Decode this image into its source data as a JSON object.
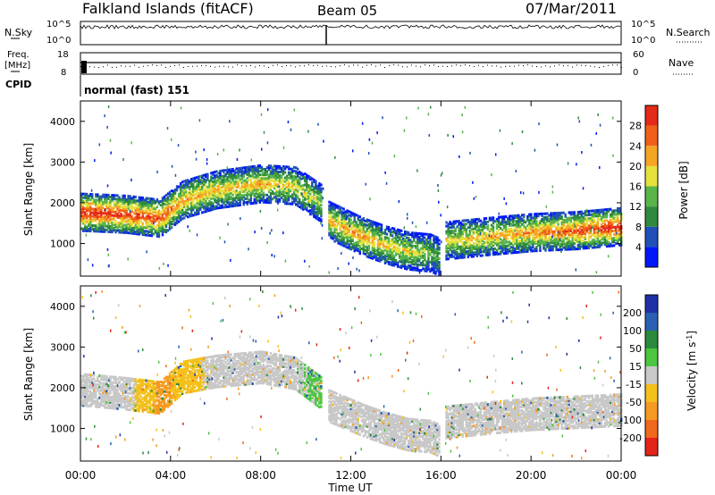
{
  "header": {
    "station": "Falkland Islands (fitACF)",
    "beam": "Beam 05",
    "date": "07/Mar/2011"
  },
  "strips": {
    "nsky_label": "N.Sky",
    "nsky_ticks": [
      "10^5",
      "10^0"
    ],
    "nsearch_label": "N.Search",
    "nsearch_ticks": [
      "10^5",
      "10^0"
    ],
    "freq_label_line1": "Freq.",
    "freq_label_line2": "[MHz]",
    "freq_ticks": [
      "18",
      "8"
    ],
    "nave_label": "Nave",
    "nave_ticks": [
      "60",
      "0"
    ],
    "cpid_label": "CPID",
    "cpid_text": "normal (fast) 151"
  },
  "axes": {
    "ylabel": "Slant Range [km]",
    "y_ticks": [
      "1000",
      "2000",
      "3000",
      "4000"
    ],
    "x_ticks": [
      "00:00",
      "04:00",
      "08:00",
      "12:00",
      "16:00",
      "20:00",
      "00:00"
    ],
    "xlabel": "Time UT"
  },
  "power_scale": {
    "label": "Power [dB]",
    "ticks": [
      "4",
      "8",
      "12",
      "16",
      "20",
      "24",
      "28"
    ],
    "colors": [
      "#0018f8",
      "#2050b8",
      "#2f8a3f",
      "#59b44a",
      "#e6e13c",
      "#f5a524",
      "#f06018",
      "#e42a18"
    ]
  },
  "velocity_scale": {
    "label": "Velocity [m s^-1]",
    "ticks": [
      "200",
      "100",
      "50",
      "15",
      "-15",
      "-50",
      "-100",
      "-200"
    ],
    "colors": [
      "#1f2fa8",
      "#2b5fb3",
      "#2c8a3c",
      "#4cc640",
      "#c8c8c8",
      "#f4c01c",
      "#f59a22",
      "#f06a1e",
      "#e42418"
    ]
  },
  "chart_data": [
    {
      "type": "heatmap",
      "title": "Power",
      "xlabel": "Time UT",
      "ylabel": "Slant Range [km]",
      "xlim": [
        0,
        24
      ],
      "ylim": [
        200,
        4500
      ],
      "clim": [
        0,
        30
      ],
      "colorbar_label": "Power [dB]",
      "echo_regions": [
        {
          "t": [
            0.0,
            2.0,
            3.5,
            4.5,
            6.0,
            8.0,
            9.5,
            10.7
          ],
          "range_km": [
            1800,
            1750,
            1650,
            2100,
            2350,
            2500,
            2450,
            2000
          ],
          "peak_db": [
            30,
            28,
            26,
            22,
            20,
            20,
            18,
            16
          ]
        },
        {
          "t": [
            11.0,
            12.5,
            13.5,
            14.5,
            15.5,
            15.9
          ],
          "range_km": [
            1600,
            1200,
            1000,
            850,
            800,
            700
          ],
          "peak_db": [
            20,
            22,
            20,
            18,
            14,
            12
          ]
        },
        {
          "t": [
            16.2,
            18.0,
            20.0,
            22.0,
            24.0
          ],
          "range_km": [
            1100,
            1200,
            1300,
            1350,
            1450
          ],
          "peak_db": [
            18,
            20,
            22,
            26,
            30
          ]
        }
      ]
    },
    {
      "type": "heatmap",
      "title": "Velocity",
      "xlabel": "Time UT",
      "ylabel": "Slant Range [km]",
      "xlim": [
        0,
        24
      ],
      "ylim": [
        200,
        4500
      ],
      "clim": [
        -200,
        200
      ],
      "colorbar_label": "Velocity [m s^-1]",
      "echo_regions": [
        {
          "t": [
            0.0,
            2.0,
            3.5,
            4.5,
            6.0,
            8.0,
            9.5,
            10.7
          ],
          "range_km": [
            2000,
            1900,
            1800,
            2300,
            2450,
            2550,
            2400,
            1900
          ],
          "velocity": [
            0,
            0,
            -60,
            -40,
            0,
            0,
            0,
            10
          ]
        },
        {
          "t": [
            11.0,
            12.5,
            13.5,
            14.5,
            15.5,
            15.9
          ],
          "range_km": [
            1600,
            1250,
            1050,
            900,
            850,
            750
          ],
          "velocity": [
            0,
            0,
            0,
            0,
            0,
            0
          ]
        },
        {
          "t": [
            16.2,
            18.0,
            20.0,
            22.0,
            24.0
          ],
          "range_km": [
            1200,
            1300,
            1400,
            1450,
            1500
          ],
          "velocity": [
            0,
            0,
            0,
            0,
            0
          ]
        }
      ]
    }
  ]
}
